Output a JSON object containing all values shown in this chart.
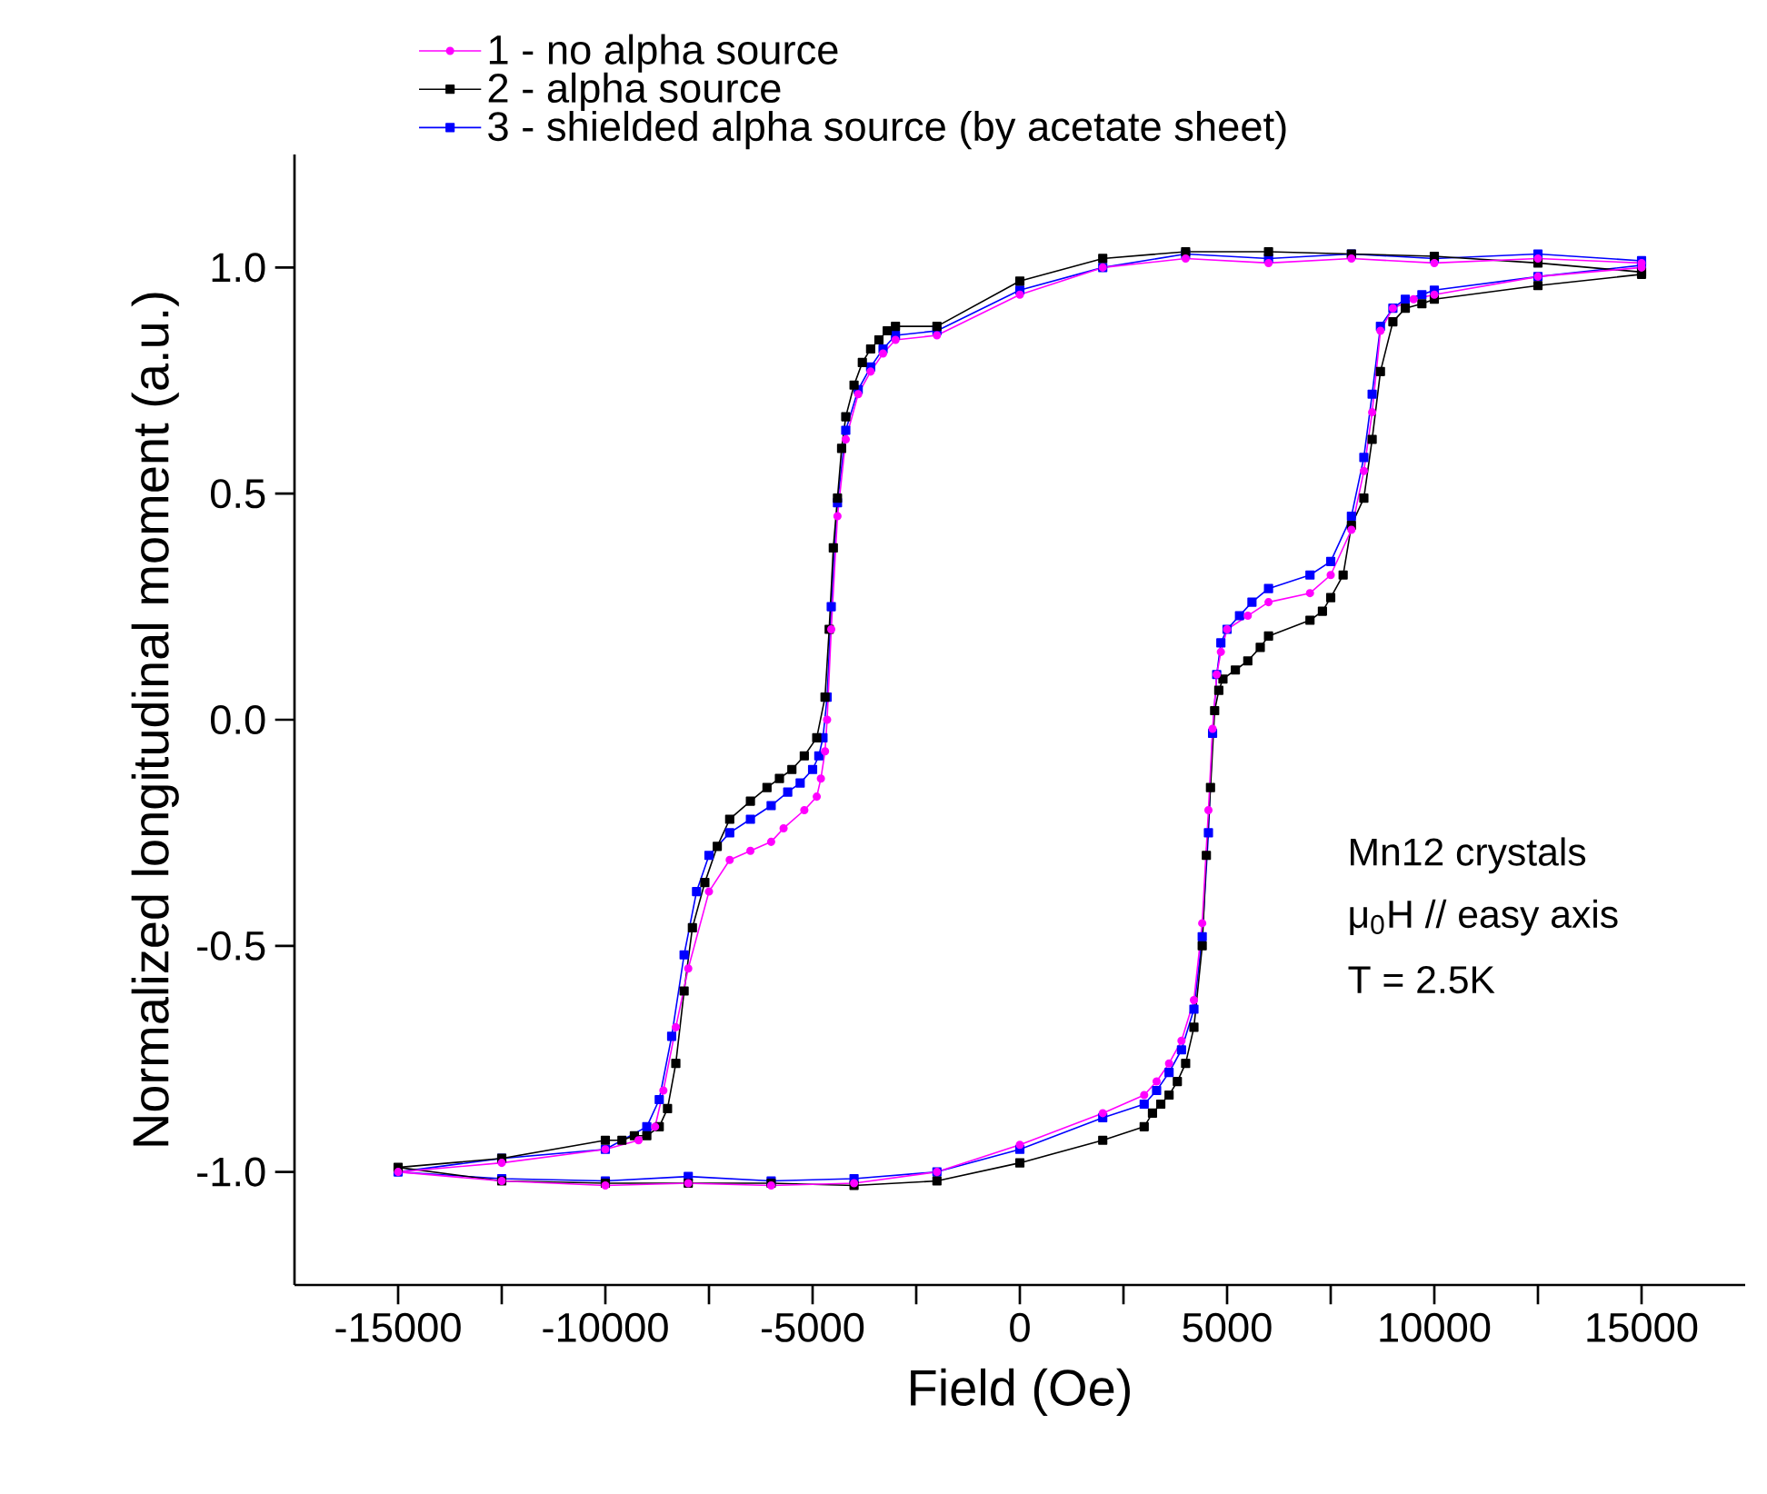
{
  "chart_data": {
    "type": "line",
    "xlabel": "Field (Oe)",
    "ylabel": "Normalized longitudinal moment (a.u.)",
    "xlim": [
      -17500,
      17500
    ],
    "ylim": [
      -1.25,
      1.25
    ],
    "xticks": [
      -15000,
      {
        "value": -12500,
        "label": null
      },
      -10000,
      {
        "value": -7500,
        "label": null
      },
      -5000,
      {
        "value": -2500,
        "label": null
      },
      0,
      {
        "value": 2500,
        "label": null
      },
      5000,
      {
        "value": 7500,
        "label": null
      },
      10000,
      {
        "value": 12500,
        "label": null
      },
      15000
    ],
    "yticks": [
      {
        "value": 1.0,
        "label": "1.0"
      },
      {
        "value": 0.5,
        "label": "0.5"
      },
      {
        "value": 0.0,
        "label": "0.0"
      },
      {
        "value": -0.5,
        "label": "-0.5"
      },
      {
        "value": -1.0,
        "label": "-1.0"
      }
    ],
    "legend": "top left",
    "line_style": "solid",
    "annotations": [
      "Mn12 crystals",
      "μ$_{0}$H // easy axis",
      "T = 2.5K"
    ],
    "series": [
      {
        "name": "1 - no alpha source",
        "color": "#ff00ff",
        "marker": "circle",
        "x": [
          15000,
          12500,
          10000,
          8000,
          6000,
          4000,
          2000,
          0,
          -2000,
          -3000,
          -3300,
          -3600,
          -3900,
          -4200,
          -4400,
          -4550,
          -4650,
          -4700,
          -4800,
          -4900,
          -5200,
          -5700,
          -6000,
          -6500,
          -7000,
          -7500,
          -8000,
          -8300,
          -8600,
          -8800,
          -9200,
          -10000,
          -12500,
          -15000,
          -12500,
          -10000,
          -8000,
          -6000,
          -4000,
          -2000,
          0,
          2000,
          3000,
          3300,
          3600,
          3900,
          4200,
          4400,
          4550,
          4650,
          4750,
          4850,
          5000,
          5500,
          6000,
          7000,
          7500,
          8000,
          8300,
          8500,
          8700,
          9000,
          9500,
          10000,
          12500,
          15000
        ],
        "values": [
          1.01,
          1.02,
          1.01,
          1.02,
          1.01,
          1.02,
          1.0,
          0.94,
          0.85,
          0.84,
          0.81,
          0.77,
          0.72,
          0.62,
          0.45,
          0.2,
          0.0,
          -0.07,
          -0.13,
          -0.17,
          -0.2,
          -0.24,
          -0.27,
          -0.29,
          -0.31,
          -0.38,
          -0.55,
          -0.68,
          -0.82,
          -0.9,
          -0.93,
          -0.95,
          -0.98,
          -1.0,
          -1.02,
          -1.03,
          -1.025,
          -1.03,
          -1.025,
          -1.0,
          -0.94,
          -0.87,
          -0.83,
          -0.8,
          -0.76,
          -0.71,
          -0.62,
          -0.45,
          -0.2,
          -0.02,
          0.1,
          0.15,
          0.2,
          0.23,
          0.26,
          0.28,
          0.32,
          0.42,
          0.55,
          0.68,
          0.86,
          0.91,
          0.93,
          0.94,
          0.98,
          1.0
        ]
      },
      {
        "name": "2 - alpha source",
        "color": "#000000",
        "marker": "square",
        "x": [
          15000,
          12500,
          10000,
          8000,
          6000,
          4000,
          2000,
          0,
          -2000,
          -3000,
          -3200,
          -3400,
          -3600,
          -3800,
          -4000,
          -4200,
          -4300,
          -4400,
          -4500,
          -4600,
          -4700,
          -4900,
          -5200,
          -5500,
          -5800,
          -6100,
          -6500,
          -7000,
          -7300,
          -7600,
          -7900,
          -8100,
          -8300,
          -8500,
          -8700,
          -9000,
          -9300,
          -9600,
          -10000,
          -12500,
          -15000,
          -12500,
          -10000,
          -8000,
          -6000,
          -4000,
          -2000,
          0,
          2000,
          3000,
          3200,
          3400,
          3600,
          3800,
          4000,
          4200,
          4400,
          4500,
          4600,
          4700,
          4800,
          4900,
          5200,
          5500,
          5800,
          6000,
          7000,
          7300,
          7500,
          7800,
          8000,
          8300,
          8500,
          8700,
          9000,
          9300,
          9700,
          10000,
          12500,
          15000
        ],
        "values": [
          0.99,
          1.01,
          1.025,
          1.03,
          1.035,
          1.035,
          1.02,
          0.97,
          0.87,
          0.87,
          0.86,
          0.84,
          0.82,
          0.79,
          0.74,
          0.67,
          0.6,
          0.49,
          0.38,
          0.2,
          0.05,
          -0.04,
          -0.08,
          -0.11,
          -0.13,
          -0.15,
          -0.18,
          -0.22,
          -0.28,
          -0.36,
          -0.46,
          -0.6,
          -0.76,
          -0.86,
          -0.9,
          -0.92,
          -0.92,
          -0.93,
          -0.93,
          -0.97,
          -0.99,
          -1.02,
          -1.025,
          -1.025,
          -1.025,
          -1.03,
          -1.02,
          -0.98,
          -0.93,
          -0.9,
          -0.87,
          -0.85,
          -0.83,
          -0.8,
          -0.76,
          -0.68,
          -0.5,
          -0.3,
          -0.15,
          0.02,
          0.065,
          0.09,
          0.11,
          0.13,
          0.16,
          0.185,
          0.22,
          0.24,
          0.27,
          0.32,
          0.43,
          0.49,
          0.62,
          0.77,
          0.88,
          0.91,
          0.92,
          0.93,
          0.96,
          0.985
        ]
      },
      {
        "name": "3 - shielded alpha source (by acetate sheet)",
        "color": "#0000ff",
        "marker": "square",
        "x": [
          15000,
          12500,
          10000,
          8000,
          6000,
          4000,
          2000,
          0,
          -2000,
          -3000,
          -3300,
          -3600,
          -3900,
          -4200,
          -4400,
          -4550,
          -4650,
          -4750,
          -4850,
          -5000,
          -5300,
          -5600,
          -6000,
          -6500,
          -7000,
          -7500,
          -7800,
          -8100,
          -8400,
          -8700,
          -9000,
          -10000,
          -12500,
          -15000,
          -12500,
          -10000,
          -8000,
          -6000,
          -4000,
          -2000,
          0,
          2000,
          3000,
          3300,
          3600,
          3900,
          4200,
          4400,
          4550,
          4650,
          4750,
          4850,
          5000,
          5300,
          5600,
          6000,
          7000,
          7500,
          8000,
          8300,
          8500,
          8700,
          9000,
          9300,
          9700,
          10000,
          12500,
          15000
        ],
        "values": [
          1.015,
          1.03,
          1.02,
          1.03,
          1.02,
          1.03,
          1.0,
          0.95,
          0.86,
          0.85,
          0.82,
          0.78,
          0.73,
          0.64,
          0.48,
          0.25,
          0.05,
          -0.04,
          -0.08,
          -0.11,
          -0.14,
          -0.16,
          -0.19,
          -0.22,
          -0.25,
          -0.3,
          -0.38,
          -0.52,
          -0.7,
          -0.84,
          -0.9,
          -0.95,
          -0.97,
          -1.0,
          -1.015,
          -1.02,
          -1.01,
          -1.02,
          -1.015,
          -1.0,
          -0.95,
          -0.88,
          -0.85,
          -0.82,
          -0.78,
          -0.73,
          -0.64,
          -0.48,
          -0.25,
          -0.03,
          0.1,
          0.17,
          0.2,
          0.23,
          0.26,
          0.29,
          0.32,
          0.35,
          0.45,
          0.58,
          0.72,
          0.87,
          0.91,
          0.93,
          0.94,
          0.95,
          0.98,
          1.005
        ]
      }
    ]
  }
}
